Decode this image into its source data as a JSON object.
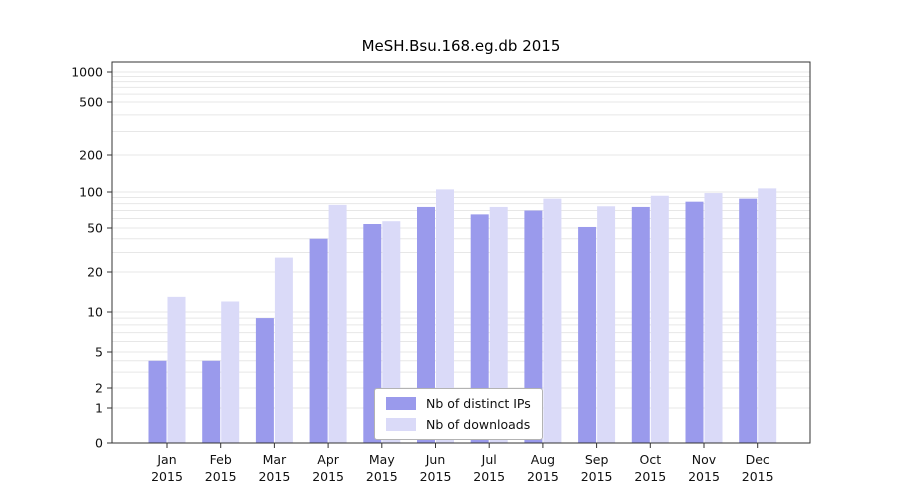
{
  "figure": {
    "title": "MeSH.Bsu.168.eg.db 2015"
  },
  "chart_data": {
    "type": "bar",
    "title": "MeSH.Bsu.168.eg.db 2015",
    "yscale": "symlog",
    "grid": "horizontal-minor",
    "legend_position": "lower center",
    "categories": [
      "Jan",
      "Feb",
      "Mar",
      "Apr",
      "May",
      "Jun",
      "Jul",
      "Aug",
      "Sep",
      "Oct",
      "Nov",
      "Dec"
    ],
    "x_year_label": "2015",
    "y_ticks": [
      0,
      1,
      2,
      5,
      10,
      20,
      50,
      100,
      200,
      500,
      1000
    ],
    "ylim": [
      0,
      1400
    ],
    "series": [
      {
        "name": "Nb of distinct IPs",
        "color": "#9a9aec",
        "values": [
          4,
          4,
          9,
          40,
          54,
          75,
          65,
          70,
          51,
          75,
          83,
          88
        ]
      },
      {
        "name": "Nb of downloads",
        "color": "#dadaf8",
        "values": [
          13,
          12,
          27,
          78,
          57,
          105,
          75,
          88,
          76,
          93,
          98,
          107
        ]
      }
    ],
    "colors": {
      "grid": "#e7e7e7",
      "axis": "#333333",
      "text": "#111111",
      "background": "#ffffff"
    }
  }
}
